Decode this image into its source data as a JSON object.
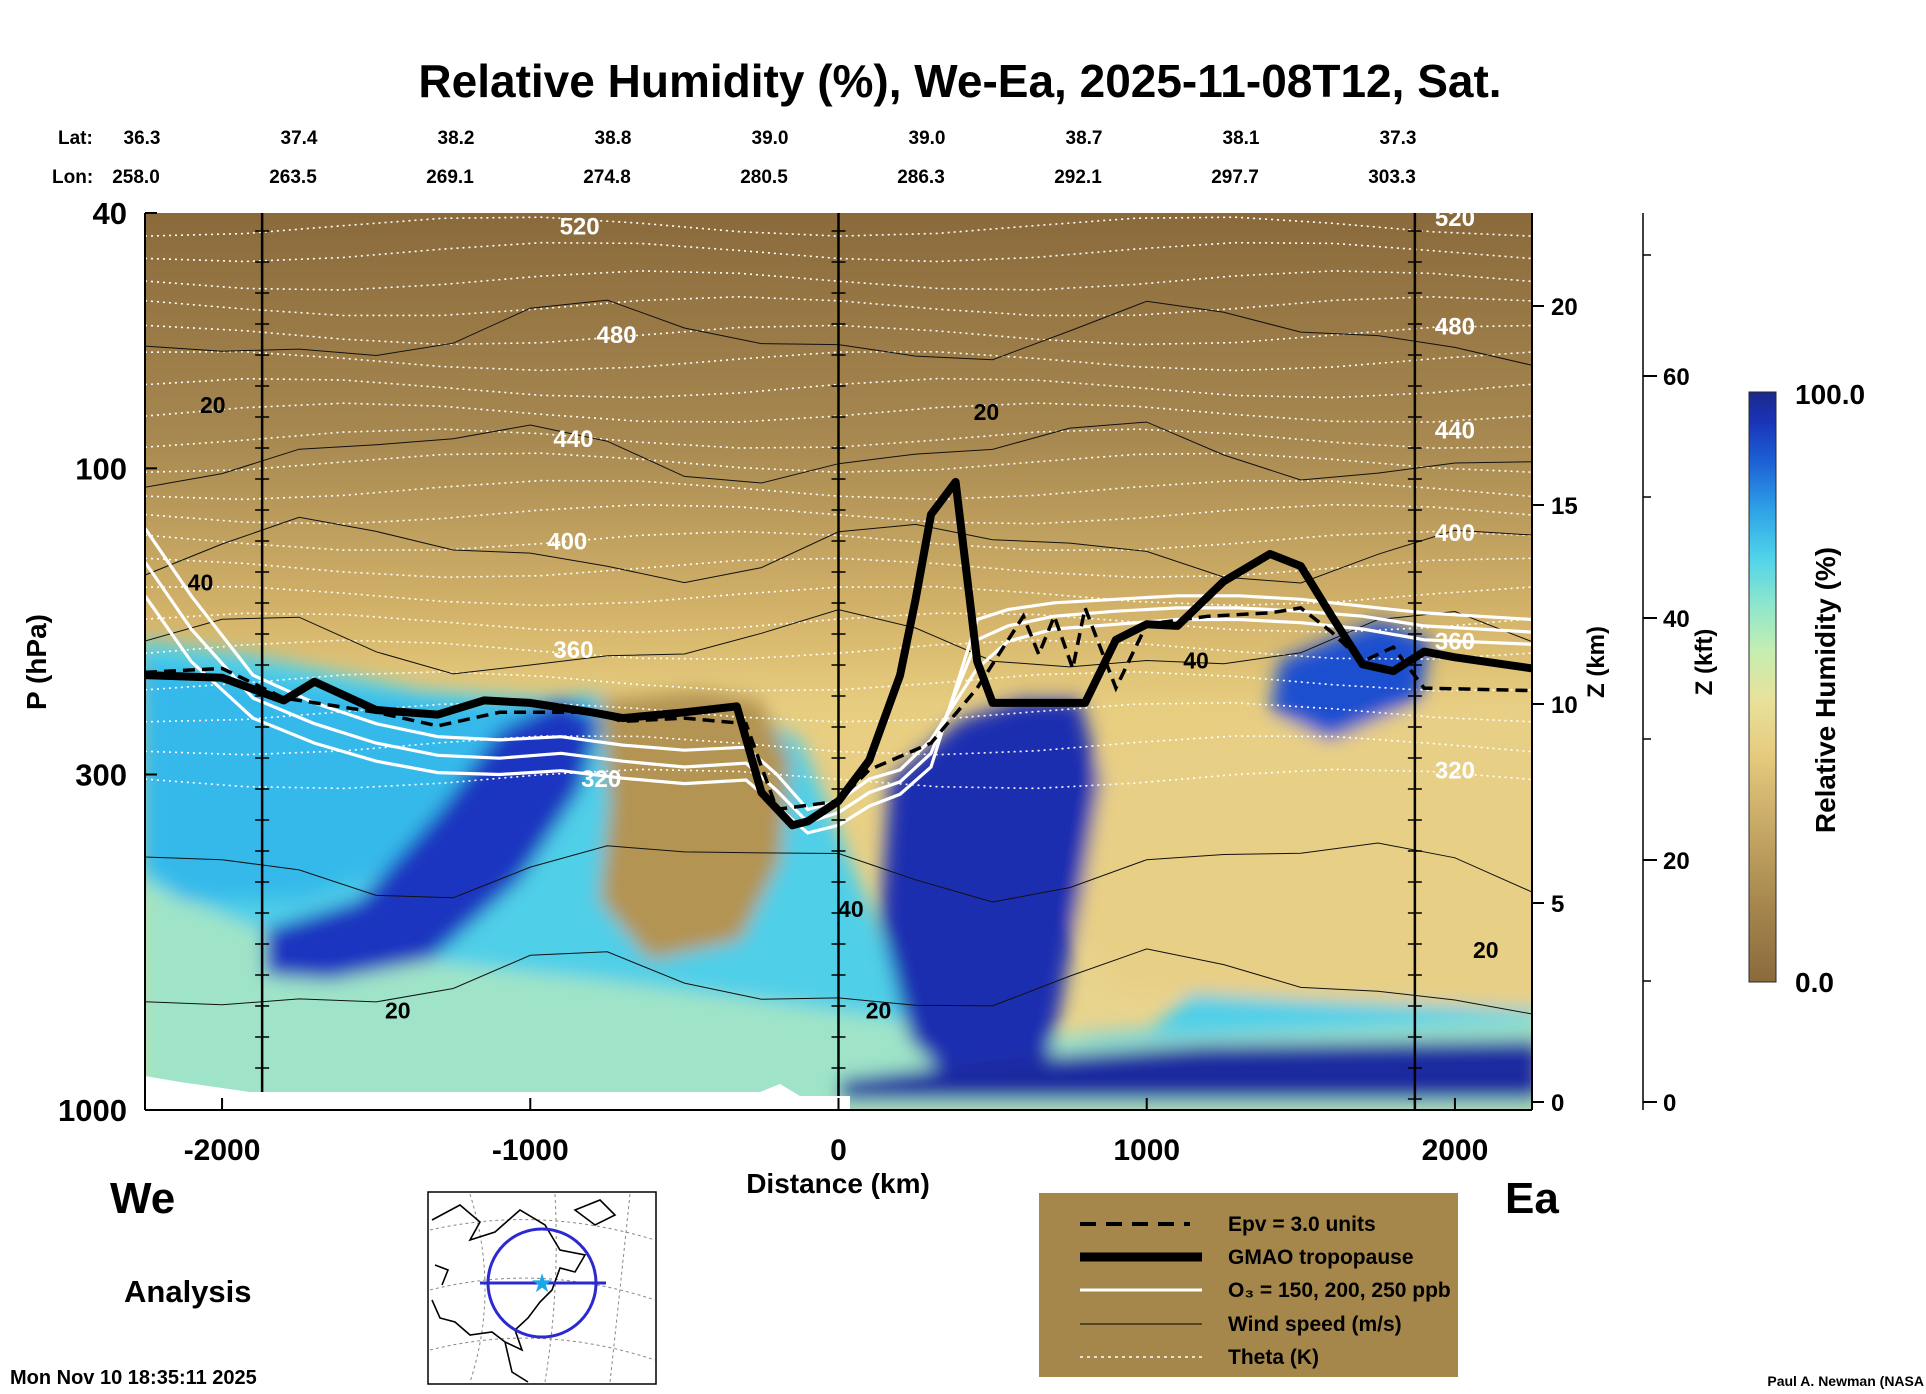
{
  "chart_data": {
    "type": "heatmap",
    "title": "Relative Humidity (%), We-Ea, 2025-11-08T12, Sat.",
    "xlabel": "Distance (km)",
    "ylabel": "P (hPa)",
    "y2label": "Z (km)",
    "y3label": "Z (kft)",
    "colorbar_label": "Relative Humidity (%)",
    "colorbar_max_label": "100.0",
    "colorbar_min_label": "0.0",
    "colorbar_range": [
      0,
      100
    ],
    "xlim": [
      -2250,
      2250
    ],
    "ylim_hpa": [
      1000,
      40
    ],
    "x_ticks": [
      -2000,
      -1000,
      0,
      1000,
      2000
    ],
    "x_tick_labels": [
      "-2000",
      "-1000",
      "0",
      "1000",
      "2000"
    ],
    "p_ticks": [
      40,
      100,
      300,
      1000
    ],
    "p_tick_labels": [
      "40",
      "100",
      "300",
      "1000"
    ],
    "z_km_ticks": [
      0,
      5,
      10,
      15,
      20
    ],
    "z_km_tick_labels": [
      "0",
      "5",
      "10",
      "15",
      "20"
    ],
    "z_kft_ticks": [
      0,
      20,
      40,
      60
    ],
    "z_kft_tick_labels": [
      "0",
      "20",
      "40",
      "60"
    ],
    "vertical_marker_x": [
      -1870,
      0,
      1870
    ],
    "lat_label": "Lat:",
    "lon_label": "Lon:",
    "lats": [
      "36.3",
      "37.4",
      "38.2",
      "38.8",
      "39.0",
      "39.0",
      "38.7",
      "38.1",
      "37.3"
    ],
    "lons": [
      "258.0",
      "263.5",
      "269.1",
      "274.8",
      "280.5",
      "286.3",
      "292.1",
      "297.7",
      "303.3"
    ],
    "tropopause": {
      "name": "GMAO tropopause",
      "x": [
        -2250,
        -2000,
        -1800,
        -1700,
        -1500,
        -1300,
        -1150,
        -1000,
        -800,
        -700,
        -500,
        -330,
        -250,
        -150,
        -100,
        0,
        100,
        200,
        250,
        300,
        380,
        450,
        500,
        800,
        900,
        1000,
        1100,
        1250,
        1400,
        1500,
        1600,
        1700,
        1800,
        1900,
        2000,
        2250
      ],
      "p": [
        210,
        212,
        230,
        215,
        238,
        242,
        230,
        232,
        240,
        245,
        240,
        235,
        320,
        360,
        355,
        330,
        285,
        210,
        160,
        118,
        105,
        200,
        232,
        232,
        185,
        175,
        176,
        150,
        136,
        142,
        170,
        202,
        207,
        193,
        197,
        205
      ]
    },
    "epv": {
      "name": "Epv = 3.0 units",
      "x": [
        -2250,
        -2000,
        -1800,
        -1500,
        -1300,
        -1100,
        -800,
        -700,
        -500,
        -300,
        -200,
        0,
        100,
        300,
        450,
        600,
        650,
        700,
        760,
        800,
        900,
        1000,
        1200,
        1400,
        1500,
        1600,
        1700,
        1800,
        1900,
        2250
      ],
      "p": [
        208,
        205,
        228,
        240,
        252,
        240,
        240,
        248,
        245,
        250,
        340,
        330,
        295,
        268,
        220,
        170,
        195,
        170,
        205,
        165,
        220,
        175,
        170,
        168,
        165,
        180,
        200,
        190,
        220,
        222
      ]
    },
    "ozone_contours": {
      "name": "O₃ = 150, 200, 250 ppb",
      "levels": [
        150,
        200,
        250
      ],
      "x": [
        -2250,
        -2100,
        -1900,
        -1700,
        -1500,
        -1300,
        -1100,
        -900,
        -700,
        -500,
        -300,
        -200,
        -100,
        0,
        100,
        200,
        300,
        450,
        550,
        700,
        900,
        1100,
        1300,
        1500,
        1700,
        1900,
        2250
      ],
      "p": [
        [
          124,
          158,
          210,
          232,
          250,
          262,
          265,
          262,
          270,
          275,
          272,
          300,
          340,
          330,
          305,
          295,
          265,
          205,
          186,
          178,
          175,
          172,
          172,
          174,
          178,
          185,
          188
        ],
        [
          140,
          178,
          228,
          250,
          268,
          280,
          283,
          278,
          286,
          292,
          288,
          318,
          356,
          344,
          320,
          308,
          278,
          185,
          176,
          170,
          167,
          165,
          165,
          167,
          170,
          176,
          180
        ],
        [
          158,
          200,
          245,
          268,
          286,
          298,
          300,
          296,
          304,
          310,
          306,
          336,
          370,
          360,
          336,
          322,
          292,
          172,
          166,
          162,
          160,
          158,
          158,
          160,
          164,
          168,
          172
        ]
      ]
    },
    "theta_contours": {
      "name": "Theta (K)",
      "levels": [
        320,
        330,
        340,
        350,
        360,
        370,
        380,
        390,
        400,
        410,
        420,
        430,
        440,
        450,
        460,
        470,
        480,
        490,
        500,
        510,
        520
      ],
      "label_values": [
        "320",
        "360",
        "400",
        "440",
        "480",
        "520"
      ],
      "p": [
        305,
        270,
        240,
        215,
        192,
        174,
        158,
        143,
        130,
        118,
        108,
        98,
        90,
        82,
        75,
        68,
        62,
        56,
        51,
        46,
        42
      ]
    },
    "wind_labels": [
      "20",
      "20",
      "40",
      "40",
      "20",
      "20",
      "20",
      "40"
    ],
    "legend": [
      "Epv = 3.0 units",
      "GMAO tropopause",
      "O₃ = 150, 200, 250 ppb",
      "Wind speed (m/s)",
      "Theta (K)"
    ],
    "colors": {
      "rh_scale": [
        "#8a6a3b",
        "#a1824b",
        "#b89c5c",
        "#d3b46c",
        "#ead68a",
        "#d8f0a8",
        "#9fe8c6",
        "#5fd8e8",
        "#35b6ea",
        "#1f78dd",
        "#1a3ec5",
        "#1c2a92"
      ],
      "legend_bg": "#a5874b",
      "tropopause": "#000000",
      "ozone": "#ffffff",
      "theta": "#ffffff"
    }
  },
  "labels": {
    "west": "We",
    "east": "Ea",
    "analysis": "Analysis",
    "timestamp": "Mon Nov 10 18:35:11 2025",
    "credit": "Paul A. Newman (NASA"
  }
}
